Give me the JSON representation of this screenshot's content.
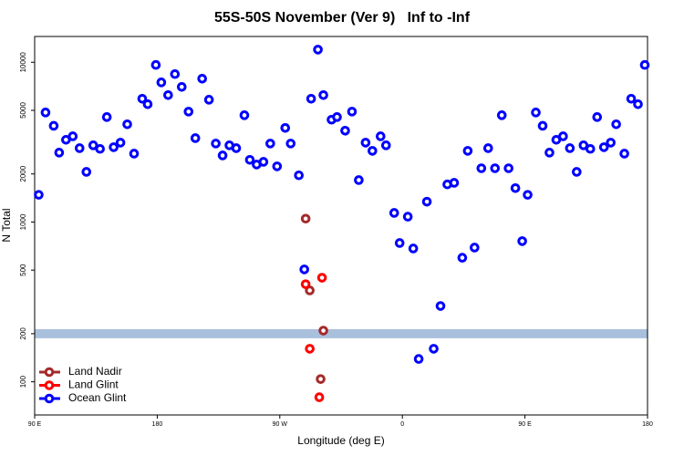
{
  "chart_data": {
    "type": "scatter",
    "title": "55S-50S November (Ver 9)   Inf to -Inf",
    "x_label": "Longitude (deg E)",
    "y_label": "N Total",
    "log_y": true,
    "xlim": [
      90,
      540
    ],
    "ylim": [
      62,
      14500
    ],
    "xticks": [
      {
        "value": 90,
        "label": "90 E"
      },
      180,
      {
        "value": 270,
        "label": "90 W"
      },
      {
        "value": 360,
        "label": "0"
      },
      {
        "value": 450,
        "label": "90 E"
      },
      {
        "value": 540,
        "label": "180"
      }
    ],
    "yticks": [
      100,
      200,
      500,
      1000,
      2000,
      5000,
      10000
    ],
    "hband": 200,
    "hband_color": "#a9c0dd",
    "legend": "bottom-left",
    "series": [
      {
        "name": "Land Nadir",
        "color": "#a52a2a",
        "x": [
          289,
          292,
          302,
          300
        ],
        "values": [
          1050,
          373,
          209,
          104
        ]
      },
      {
        "name": "Land Glint",
        "color": "#ff0000",
        "x": [
          289,
          301,
          292,
          299
        ],
        "values": [
          408,
          448,
          161,
          80
        ]
      },
      {
        "name": "Ocean Glint",
        "color": "#0000ff",
        "x": [
          93,
          98,
          104,
          108,
          113,
          118,
          123,
          128,
          133,
          138,
          143,
          148,
          153,
          158,
          163,
          169,
          173,
          179,
          183,
          188,
          193,
          198,
          203,
          208,
          213,
          218,
          223,
          228,
          233,
          238,
          244,
          248,
          253,
          258,
          263,
          268,
          274,
          278,
          284,
          288,
          293,
          298,
          302,
          308,
          312,
          318,
          323,
          328,
          333,
          338,
          344,
          348,
          354,
          358,
          364,
          368,
          372,
          378,
          383,
          388,
          393,
          398,
          404,
          408,
          413,
          418,
          423,
          428,
          433,
          438,
          443,
          448,
          452,
          458,
          463,
          468,
          473,
          478,
          483,
          488,
          493,
          498,
          503,
          508,
          513,
          517,
          523,
          528,
          533,
          538
        ],
        "values": [
          1480,
          4850,
          4000,
          2720,
          3270,
          3440,
          2900,
          2060,
          3020,
          2870,
          4540,
          2940,
          3140,
          4090,
          2680,
          5910,
          5460,
          9620,
          7480,
          6230,
          8430,
          7010,
          4910,
          3350,
          7890,
          5830,
          3100,
          2610,
          3020,
          2900,
          4660,
          2450,
          2290,
          2380,
          3100,
          2230,
          3880,
          3100,
          1960,
          505,
          5910,
          12000,
          6230,
          4370,
          4540,
          3730,
          4910,
          1830,
          3140,
          2790,
          3440,
          3020,
          1140,
          739,
          1080,
          683,
          139,
          1340,
          161,
          298,
          1720,
          1760,
          598,
          2790,
          692,
          2170,
          2900,
          2170,
          4660,
          2170,
          1630,
          759,
          1480,
          4850,
          4000,
          2720,
          3270,
          3440,
          2900,
          2060,
          3020,
          2870,
          4540,
          2940,
          3140,
          4090,
          2680,
          5910,
          5460,
          9620
        ]
      }
    ]
  }
}
